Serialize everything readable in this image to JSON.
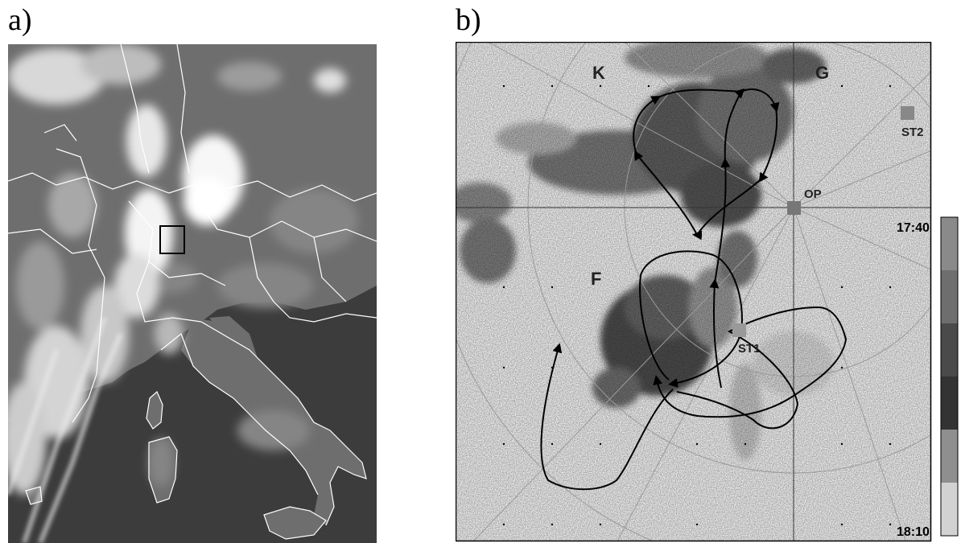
{
  "panels": {
    "a": {
      "label": "a)"
    },
    "b": {
      "label": "b)"
    }
  },
  "radar": {
    "cells": [
      {
        "id": "K",
        "label": "K"
      },
      {
        "id": "G",
        "label": "G"
      },
      {
        "id": "F",
        "label": "F"
      }
    ],
    "stations": [
      {
        "id": "ST2",
        "label": "ST2"
      },
      {
        "id": "OP",
        "label": "OP"
      },
      {
        "id": "ST1",
        "label": "ST1"
      }
    ],
    "colorbar": {
      "top_label": "17:40",
      "bottom_label": "18:10",
      "shades": [
        "#8a8a8a",
        "#6e6e6e",
        "#4a4a4a",
        "#333333",
        "#8f8f8f",
        "#d2d2d2"
      ]
    }
  },
  "colors": {
    "map_background": "#3c3c3c",
    "land": "#6f6f6f",
    "cloud": "#f2f2f2",
    "border": "#ffffff",
    "radar_background": "#f4f4f4",
    "station": "#888888",
    "track": "#000000"
  }
}
